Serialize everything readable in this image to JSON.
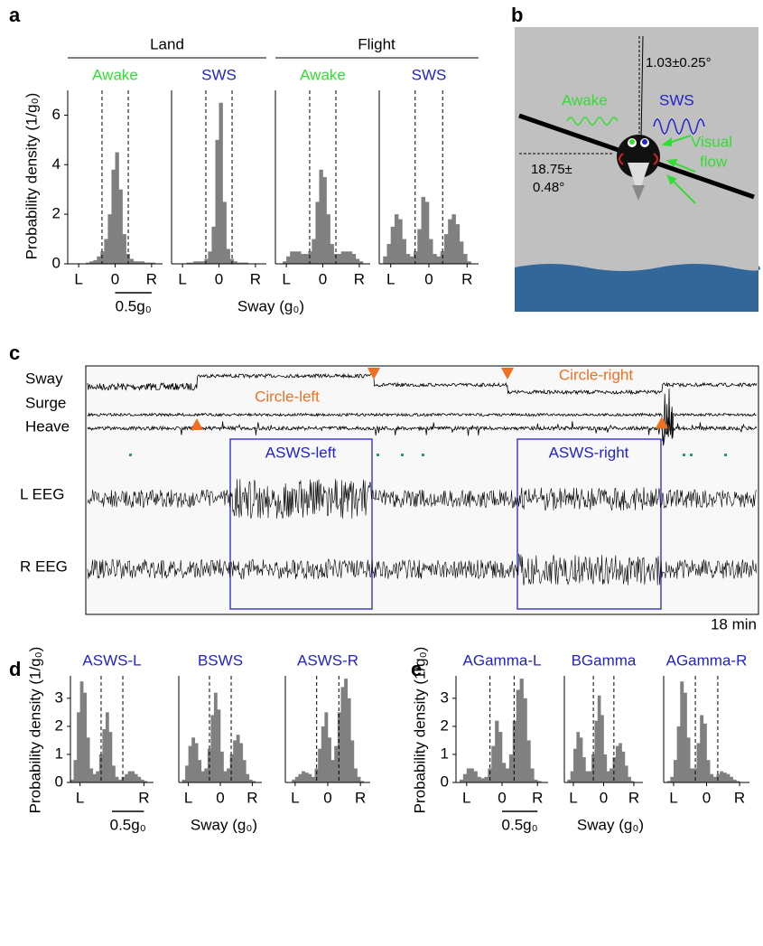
{
  "chart_data": [
    {
      "type": "histogram",
      "title": "Awake",
      "title_color": "#33dd33",
      "color": "#808080",
      "bins": [
        -0.65,
        -0.6,
        -0.55,
        -0.5,
        -0.45,
        -0.4,
        -0.35,
        -0.3,
        -0.25,
        -0.2,
        -0.15,
        -0.1,
        -0.05,
        0,
        0.05,
        0.1,
        0.15,
        0.2,
        0.25,
        0.3,
        0.35,
        0.4,
        0.45,
        0.5,
        0.55,
        0.6,
        0.65
      ],
      "values": [
        0,
        0,
        0,
        0,
        0,
        0.05,
        0.1,
        0.15,
        0.3,
        0.5,
        1.0,
        2.0,
        3.8,
        4.5,
        3.0,
        1.2,
        0.4,
        0.2,
        0.1,
        0.1,
        0.1,
        0.05,
        0.05,
        0.05,
        0,
        0
      ],
      "xlim": [
        -0.65,
        0.65
      ],
      "xticks": [
        {
          "value": -0.5,
          "label": "L"
        },
        0,
        {
          "value": 0.5,
          "label": "R"
        }
      ],
      "ylim": [
        0,
        7
      ],
      "yticks": [
        0,
        2,
        4,
        6
      ],
      "thresholds": [
        -0.18,
        0.18
      ]
    },
    {
      "type": "histogram",
      "title": "SWS",
      "title_color": "#2222cc",
      "color": "#808080",
      "bins": [
        -0.65,
        -0.6,
        -0.55,
        -0.5,
        -0.45,
        -0.4,
        -0.35,
        -0.3,
        -0.25,
        -0.2,
        -0.15,
        -0.1,
        -0.05,
        0,
        0.05,
        0.1,
        0.15,
        0.2,
        0.25,
        0.3,
        0.35,
        0.4,
        0.45,
        0.5,
        0.55,
        0.6,
        0.65
      ],
      "values": [
        0,
        0,
        0,
        0,
        0.05,
        0.05,
        0.1,
        0.1,
        0.1,
        0.2,
        0.5,
        1.5,
        5.0,
        6.5,
        2.5,
        0.6,
        0.2,
        0.1,
        0.05,
        0.05,
        0.05,
        0,
        0,
        0,
        0,
        0
      ],
      "xlim": [
        -0.65,
        0.65
      ],
      "xticks": [
        {
          "value": -0.5,
          "label": "L"
        },
        0,
        {
          "value": 0.5,
          "label": "R"
        }
      ],
      "ylim": [
        0,
        7
      ],
      "thresholds": [
        -0.18,
        0.18
      ]
    },
    {
      "type": "histogram",
      "title": "Awake",
      "title_color": "#33dd33",
      "color": "#808080",
      "bins": [
        -0.65,
        -0.6,
        -0.55,
        -0.5,
        -0.45,
        -0.4,
        -0.35,
        -0.3,
        -0.25,
        -0.2,
        -0.15,
        -0.1,
        -0.05,
        0,
        0.05,
        0.1,
        0.15,
        0.2,
        0.25,
        0.3,
        0.35,
        0.4,
        0.45,
        0.5,
        0.55,
        0.6,
        0.65
      ],
      "values": [
        0,
        0,
        0.1,
        0.3,
        0.5,
        0.5,
        0.5,
        0.4,
        0.4,
        0.5,
        1.0,
        2.5,
        3.8,
        3.5,
        2.0,
        0.8,
        0.4,
        0.4,
        0.5,
        0.5,
        0.5,
        0.4,
        0.2,
        0.1,
        0,
        0
      ],
      "xlim": [
        -0.65,
        0.65
      ],
      "xticks": [
        {
          "value": -0.5,
          "label": "L"
        },
        0,
        {
          "value": 0.5,
          "label": "R"
        }
      ],
      "ylim": [
        0,
        7
      ],
      "thresholds": [
        -0.18,
        0.18
      ]
    },
    {
      "type": "histogram",
      "title": "SWS",
      "title_color": "#2222cc",
      "color": "#808080",
      "bins": [
        -0.65,
        -0.6,
        -0.55,
        -0.5,
        -0.45,
        -0.4,
        -0.35,
        -0.3,
        -0.25,
        -0.2,
        -0.15,
        -0.1,
        -0.05,
        0,
        0.05,
        0.1,
        0.15,
        0.2,
        0.25,
        0.3,
        0.35,
        0.4,
        0.45,
        0.5,
        0.55,
        0.6,
        0.65
      ],
      "values": [
        0,
        0.3,
        0.8,
        1.5,
        2.0,
        1.8,
        1.0,
        0.4,
        0.3,
        0.5,
        1.4,
        2.7,
        2.5,
        1.0,
        0.4,
        0.3,
        0.5,
        1.2,
        1.8,
        2.0,
        1.6,
        0.9,
        0.4,
        0.1,
        0,
        0
      ],
      "xlim": [
        -0.65,
        0.65
      ],
      "xticks": [
        {
          "value": -0.5,
          "label": "L"
        },
        0,
        {
          "value": 0.5,
          "label": "R"
        }
      ],
      "ylim": [
        0,
        7
      ],
      "thresholds": [
        -0.18,
        0.18
      ]
    },
    {
      "type": "histogram",
      "title": "ASWS-L",
      "title_color": "#2222cc",
      "color": "#808080",
      "bins": [
        -0.65,
        -0.6,
        -0.55,
        -0.5,
        -0.45,
        -0.4,
        -0.35,
        -0.3,
        -0.25,
        -0.2,
        -0.15,
        -0.1,
        -0.05,
        0,
        0.05,
        0.1,
        0.15,
        0.2,
        0.25,
        0.3,
        0.35,
        0.4,
        0.45,
        0.5,
        0.55,
        0.6,
        0.65
      ],
      "values": [
        0.1,
        0.8,
        2.5,
        3.6,
        3.2,
        1.6,
        0.5,
        0.3,
        0.4,
        1.0,
        1.9,
        2.5,
        1.8,
        0.6,
        0.2,
        0.1,
        0.2,
        0.3,
        0.4,
        0.4,
        0.3,
        0.2,
        0.1,
        0.05,
        0,
        0
      ],
      "xlim": [
        -0.65,
        0.65
      ],
      "xticks": [
        {
          "value": -0.5,
          "label": "L"
        },
        {
          "value": 0.5,
          "label": "R"
        }
      ],
      "ylim": [
        0,
        3.8
      ],
      "yticks": [
        0,
        1,
        2,
        3
      ],
      "thresholds": [
        -0.17,
        0.17
      ]
    },
    {
      "type": "histogram",
      "title": "BSWS",
      "title_color": "#2222cc",
      "color": "#808080",
      "bins": [
        -0.65,
        -0.6,
        -0.55,
        -0.5,
        -0.45,
        -0.4,
        -0.35,
        -0.3,
        -0.25,
        -0.2,
        -0.15,
        -0.1,
        -0.05,
        0,
        0.05,
        0.1,
        0.15,
        0.2,
        0.25,
        0.3,
        0.35,
        0.4,
        0.45,
        0.5,
        0.55,
        0.6,
        0.65
      ],
      "values": [
        0,
        0.1,
        0.6,
        1.3,
        1.6,
        1.4,
        0.8,
        0.4,
        0.5,
        1.2,
        2.4,
        3.2,
        2.6,
        1.1,
        0.4,
        0.5,
        1.0,
        1.5,
        1.7,
        1.4,
        0.8,
        0.3,
        0.1,
        0.05,
        0,
        0
      ],
      "xlim": [
        -0.65,
        0.65
      ],
      "xticks": [
        {
          "value": -0.5,
          "label": "L"
        },
        0,
        {
          "value": 0.5,
          "label": "R"
        }
      ],
      "ylim": [
        0,
        3.8
      ],
      "thresholds": [
        -0.17,
        0.17
      ]
    },
    {
      "type": "histogram",
      "title": "ASWS-R",
      "title_color": "#2222cc",
      "color": "#808080",
      "bins": [
        -0.65,
        -0.6,
        -0.55,
        -0.5,
        -0.45,
        -0.4,
        -0.35,
        -0.3,
        -0.25,
        -0.2,
        -0.15,
        -0.1,
        -0.05,
        0,
        0.05,
        0.1,
        0.15,
        0.2,
        0.25,
        0.3,
        0.35,
        0.4,
        0.45,
        0.5,
        0.55,
        0.6,
        0.65
      ],
      "values": [
        0,
        0,
        0.1,
        0.2,
        0.3,
        0.4,
        0.35,
        0.3,
        0.2,
        0.5,
        1.2,
        2.0,
        2.5,
        1.6,
        0.8,
        1.3,
        2.5,
        3.4,
        3.7,
        3.0,
        1.5,
        0.5,
        0.2,
        0.05,
        0,
        0
      ],
      "xlim": [
        -0.65,
        0.65
      ],
      "xticks": [
        {
          "value": -0.5,
          "label": "L"
        },
        0,
        {
          "value": 0.5,
          "label": "R"
        }
      ],
      "ylim": [
        0,
        3.8
      ],
      "thresholds": [
        -0.17,
        0.17
      ]
    },
    {
      "type": "histogram",
      "title": "AGamma-L",
      "title_color": "#2222cc",
      "color": "#808080",
      "bins": [
        -0.65,
        -0.6,
        -0.55,
        -0.5,
        -0.45,
        -0.4,
        -0.35,
        -0.3,
        -0.25,
        -0.2,
        -0.15,
        -0.1,
        -0.05,
        0,
        0.05,
        0.1,
        0.15,
        0.2,
        0.25,
        0.3,
        0.35,
        0.4,
        0.45,
        0.5,
        0.55,
        0.6,
        0.65
      ],
      "values": [
        0,
        0.1,
        0.3,
        0.5,
        0.5,
        0.4,
        0.2,
        0.15,
        0.2,
        0.5,
        1.3,
        2.2,
        1.8,
        0.7,
        0.5,
        1.0,
        2.2,
        3.3,
        3.7,
        3.0,
        1.5,
        0.5,
        0.1,
        0.05,
        0,
        0
      ],
      "xlim": [
        -0.65,
        0.65
      ],
      "xticks": [
        {
          "value": -0.5,
          "label": "L"
        },
        0,
        {
          "value": 0.5,
          "label": "R"
        }
      ],
      "ylim": [
        0,
        3.8
      ],
      "yticks": [
        0,
        1,
        2,
        3
      ],
      "thresholds": [
        -0.17,
        0.17
      ]
    },
    {
      "type": "histogram",
      "title": "BGamma",
      "title_color": "#2222cc",
      "color": "#808080",
      "bins": [
        -0.65,
        -0.6,
        -0.55,
        -0.5,
        -0.45,
        -0.4,
        -0.35,
        -0.3,
        -0.25,
        -0.2,
        -0.15,
        -0.1,
        -0.05,
        0,
        0.05,
        0.1,
        0.15,
        0.2,
        0.25,
        0.3,
        0.35,
        0.4,
        0.45,
        0.5,
        0.55,
        0.6,
        0.65
      ],
      "values": [
        0,
        0.1,
        0.4,
        1.2,
        1.8,
        1.6,
        0.9,
        0.4,
        0.4,
        1.0,
        2.2,
        3.1,
        2.4,
        1.0,
        0.4,
        0.5,
        0.9,
        1.3,
        1.4,
        1.1,
        0.6,
        0.2,
        0.05,
        0,
        0,
        0
      ],
      "xlim": [
        -0.65,
        0.65
      ],
      "xticks": [
        {
          "value": -0.5,
          "label": "L"
        },
        0,
        {
          "value": 0.5,
          "label": "R"
        }
      ],
      "ylim": [
        0,
        3.8
      ],
      "thresholds": [
        -0.17,
        0.17
      ]
    },
    {
      "type": "histogram",
      "title": "AGamma-R",
      "title_color": "#2222cc",
      "color": "#808080",
      "bins": [
        -0.65,
        -0.6,
        -0.55,
        -0.5,
        -0.45,
        -0.4,
        -0.35,
        -0.3,
        -0.25,
        -0.2,
        -0.15,
        -0.1,
        -0.05,
        0,
        0.05,
        0.1,
        0.15,
        0.2,
        0.25,
        0.3,
        0.35,
        0.4,
        0.45,
        0.5,
        0.55,
        0.6,
        0.65
      ],
      "values": [
        0,
        0.05,
        0.2,
        0.8,
        2.0,
        3.6,
        3.2,
        1.6,
        0.5,
        0.5,
        1.4,
        2.4,
        2.1,
        0.8,
        0.3,
        0.2,
        0.3,
        0.4,
        0.35,
        0.3,
        0.2,
        0.1,
        0.05,
        0,
        0,
        0
      ],
      "xlim": [
        -0.65,
        0.65
      ],
      "xticks": [
        {
          "value": -0.5,
          "label": "L"
        },
        0,
        {
          "value": 0.5,
          "label": "R"
        }
      ],
      "ylim": [
        0,
        3.8
      ],
      "thresholds": [
        -0.17,
        0.17
      ]
    }
  ],
  "figure": {
    "panel_labels": [
      "a",
      "b",
      "c",
      "d",
      "e"
    ],
    "a": {
      "groups": [
        "Land",
        "Flight"
      ],
      "ylabel": "Probability density (1/g₀)",
      "xlabel": "Sway (g₀)",
      "scale_bar": {
        "value": 0.5,
        "label": "0.5g₀"
      }
    },
    "b": {
      "tilt": "1.03±0.25°",
      "awake": "Awake",
      "sws": "SWS",
      "visual_flow": [
        "Visual",
        "flow"
      ],
      "angle": [
        "18.75±",
        "0.48°"
      ]
    },
    "c": {
      "traces": [
        "Sway",
        "Surge",
        "Heave",
        "L EEG",
        "R EEG"
      ],
      "maneuvers": [
        "Circle-left",
        "Circle-right"
      ],
      "periods": [
        "ASWS-left",
        "ASWS-right"
      ],
      "duration": "18 min"
    },
    "d": {
      "ylabel": "Probability density (1/g₀)",
      "xlabel": "Sway (g₀)",
      "scale_bar": {
        "value": 0.5,
        "label": "0.5g₀"
      }
    },
    "e": {
      "ylabel": "Probability density (1/g₀)",
      "xlabel": "Sway (g₀)",
      "scale_bar": {
        "value": 0.5,
        "label": "0.5g₀"
      }
    }
  }
}
